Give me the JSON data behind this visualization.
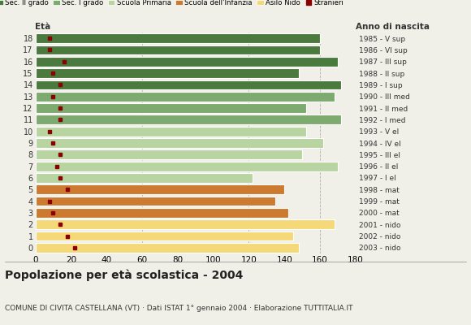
{
  "ages": [
    18,
    17,
    16,
    15,
    14,
    13,
    12,
    11,
    10,
    9,
    8,
    7,
    6,
    5,
    4,
    3,
    2,
    1,
    0
  ],
  "years": [
    "1985 - V sup",
    "1986 - VI sup",
    "1987 - III sup",
    "1988 - II sup",
    "1989 - I sup",
    "1990 - III med",
    "1991 - II med",
    "1992 - I med",
    "1993 - V el",
    "1994 - IV el",
    "1995 - III el",
    "1996 - II el",
    "1997 - I el",
    "1998 - mat",
    "1999 - mat",
    "2000 - mat",
    "2001 - nido",
    "2002 - nido",
    "2003 - nido"
  ],
  "bar_values": [
    160,
    160,
    170,
    148,
    172,
    168,
    152,
    172,
    152,
    162,
    150,
    170,
    122,
    140,
    135,
    142,
    168,
    145,
    148
  ],
  "bar_colors": [
    "#4a7a3d",
    "#4a7a3d",
    "#4a7a3d",
    "#4a7a3d",
    "#4a7a3d",
    "#7daa6e",
    "#7daa6e",
    "#7daa6e",
    "#b8d4a0",
    "#b8d4a0",
    "#b8d4a0",
    "#b8d4a0",
    "#b8d4a0",
    "#cc7a30",
    "#cc7a30",
    "#cc7a30",
    "#f5d878",
    "#f5d878",
    "#f5d878"
  ],
  "stranieri_values": [
    8,
    8,
    16,
    10,
    14,
    10,
    14,
    14,
    8,
    10,
    14,
    12,
    14,
    18,
    8,
    10,
    14,
    18,
    22
  ],
  "title": "Popolazione per età scolastica - 2004",
  "subtitle": "COMUNE DI CIVITA CASTELLANA (VT) · Dati ISTAT 1° gennaio 2004 · Elaborazione TUTTITALIA.IT",
  "xlabel_left": "Età",
  "xlabel_right": "Anno di nascita",
  "xlim": [
    0,
    180
  ],
  "xticks": [
    0,
    20,
    40,
    60,
    80,
    100,
    120,
    140,
    160,
    180
  ],
  "legend_labels": [
    "Sec. II grado",
    "Sec. I grado",
    "Scuola Primaria",
    "Scuola dell'Infanzia",
    "Asilo Nido",
    "Stranieri"
  ],
  "legend_colors": [
    "#4a7a3d",
    "#7daa6e",
    "#b8d4a0",
    "#cc7a30",
    "#f5d878",
    "#8b0000"
  ],
  "bg_color": "#f0f0e8",
  "bar_height": 0.82,
  "grid_color": "#b0b0b0"
}
